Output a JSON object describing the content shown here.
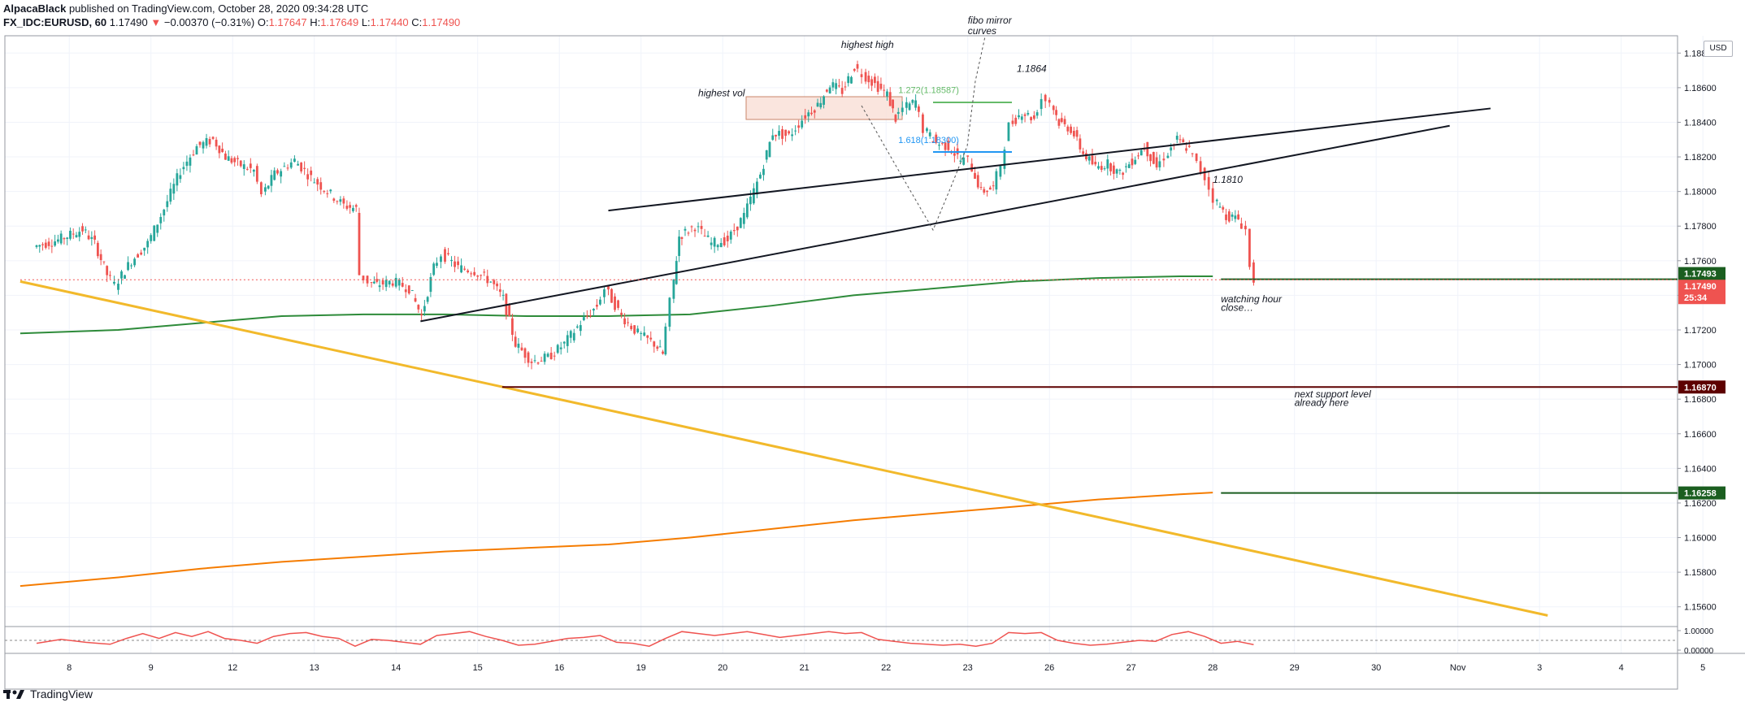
{
  "header": {
    "author": "AlpacaBlack",
    "published": " published on TradingView.com, October 28, 2020 09:34:28 UTC",
    "symbol": "FX_IDC:EURUSD, 60",
    "last": "1.17490",
    "change": "−0.00370 (−0.31%)",
    "o_label": "O:",
    "o_val": "1.17647",
    "h_label": "H:",
    "h_val": "1.17649",
    "l_label": "L:",
    "l_val": "1.17440",
    "c_label": "C:",
    "c_val": "1.17490"
  },
  "currency_button": "USD",
  "footer": {
    "brand": "TradingView"
  },
  "chart_data": {
    "type": "candlestick",
    "symbol": "FX_IDC:EURUSD",
    "interval": "60",
    "ylim": [
      1.155,
      1.189
    ],
    "y_ticks": [
      "1.18800",
      "1.18600",
      "1.18400",
      "1.18200",
      "1.18000",
      "1.17800",
      "1.17600",
      "1.17400",
      "1.17200",
      "1.17000",
      "1.16800",
      "1.16600",
      "1.16400",
      "1.16200",
      "1.16000",
      "1.15800",
      "1.15600"
    ],
    "x_ticks": [
      {
        "label": "8",
        "x": 0.4
      },
      {
        "label": "9",
        "x": 1.4
      },
      {
        "label": "12",
        "x": 2.4
      },
      {
        "label": "13",
        "x": 3.4
      },
      {
        "label": "14",
        "x": 4.4
      },
      {
        "label": "15",
        "x": 5.4
      },
      {
        "label": "16",
        "x": 6.4
      },
      {
        "label": "19",
        "x": 7.4
      },
      {
        "label": "20",
        "x": 8.4
      },
      {
        "label": "21",
        "x": 9.4
      },
      {
        "label": "22",
        "x": 10.4
      },
      {
        "label": "23",
        "x": 11.4
      },
      {
        "label": "26",
        "x": 12.4
      },
      {
        "label": "27",
        "x": 13.4
      },
      {
        "label": "28",
        "x": 14.4
      },
      {
        "label": "29",
        "x": 15.4
      },
      {
        "label": "30",
        "x": 16.4
      },
      {
        "label": "Nov",
        "x": 17.4
      },
      {
        "label": "3",
        "x": 18.4
      },
      {
        "label": "4",
        "x": 19.4
      },
      {
        "label": "5",
        "x": 20.4
      }
    ],
    "price_path": [
      [
        0.0,
        1.1768
      ],
      [
        0.3,
        1.1772
      ],
      [
        0.6,
        1.1778
      ],
      [
        0.75,
        1.177
      ],
      [
        0.9,
        1.1752
      ],
      [
        1.0,
        1.1746
      ],
      [
        1.2,
        1.176
      ],
      [
        1.4,
        1.177
      ],
      [
        1.6,
        1.179
      ],
      [
        1.8,
        1.1812
      ],
      [
        2.0,
        1.1826
      ],
      [
        2.2,
        1.183
      ],
      [
        2.35,
        1.182
      ],
      [
        2.5,
        1.1816
      ],
      [
        2.7,
        1.1812
      ],
      [
        2.8,
        1.1798
      ],
      [
        2.95,
        1.181
      ],
      [
        3.2,
        1.1818
      ],
      [
        3.4,
        1.1808
      ],
      [
        3.6,
        1.18
      ],
      [
        3.8,
        1.1792
      ],
      [
        3.95,
        1.179
      ],
      [
        4.0,
        1.1752
      ],
      [
        4.1,
        1.1748
      ],
      [
        4.2,
        1.1746
      ],
      [
        4.4,
        1.1748
      ],
      [
        4.6,
        1.1744
      ],
      [
        4.75,
        1.1728
      ],
      [
        4.9,
        1.1756
      ],
      [
        5.0,
        1.1764
      ],
      [
        5.2,
        1.1756
      ],
      [
        5.4,
        1.1754
      ],
      [
        5.6,
        1.1748
      ],
      [
        5.75,
        1.1738
      ],
      [
        5.9,
        1.1712
      ],
      [
        6.1,
        1.1702
      ],
      [
        6.3,
        1.1704
      ],
      [
        6.5,
        1.1712
      ],
      [
        6.7,
        1.1724
      ],
      [
        6.9,
        1.1734
      ],
      [
        7.0,
        1.1744
      ],
      [
        7.2,
        1.1728
      ],
      [
        7.4,
        1.1718
      ],
      [
        7.6,
        1.1712
      ],
      [
        7.7,
        1.1706
      ],
      [
        7.8,
        1.1736
      ],
      [
        7.9,
        1.1774
      ],
      [
        8.1,
        1.178
      ],
      [
        8.3,
        1.177
      ],
      [
        8.5,
        1.1772
      ],
      [
        8.7,
        1.1786
      ],
      [
        8.9,
        1.181
      ],
      [
        9.05,
        1.1834
      ],
      [
        9.25,
        1.1832
      ],
      [
        9.45,
        1.1844
      ],
      [
        9.6,
        1.185
      ],
      [
        9.75,
        1.1862
      ],
      [
        9.9,
        1.1858
      ],
      [
        10.05,
        1.1872
      ],
      [
        10.15,
        1.1868
      ],
      [
        10.3,
        1.1862
      ],
      [
        10.45,
        1.1856
      ],
      [
        10.55,
        1.1842
      ],
      [
        10.65,
        1.1848
      ],
      [
        10.8,
        1.1852
      ],
      [
        10.9,
        1.1836
      ],
      [
        11.05,
        1.1828
      ],
      [
        11.2,
        1.1826
      ],
      [
        11.35,
        1.1818
      ],
      [
        11.45,
        1.1818
      ],
      [
        11.6,
        1.18
      ],
      [
        11.75,
        1.1802
      ],
      [
        11.85,
        1.1816
      ],
      [
        11.95,
        1.1838
      ],
      [
        12.1,
        1.1846
      ],
      [
        12.25,
        1.1842
      ],
      [
        12.35,
        1.1854
      ],
      [
        12.45,
        1.1852
      ],
      [
        12.55,
        1.184
      ],
      [
        12.7,
        1.1836
      ],
      [
        12.85,
        1.1822
      ],
      [
        13.0,
        1.1814
      ],
      [
        13.15,
        1.1816
      ],
      [
        13.3,
        1.181
      ],
      [
        13.45,
        1.1818
      ],
      [
        13.6,
        1.1826
      ],
      [
        13.75,
        1.1814
      ],
      [
        13.85,
        1.182
      ],
      [
        14.0,
        1.183
      ],
      [
        14.15,
        1.1824
      ],
      [
        14.25,
        1.1816
      ],
      [
        14.35,
        1.1808
      ],
      [
        14.45,
        1.1796
      ],
      [
        14.6,
        1.1786
      ],
      [
        14.75,
        1.1784
      ],
      [
        14.85,
        1.1778
      ],
      [
        14.9,
        1.1756
      ],
      [
        14.95,
        1.1749
      ]
    ],
    "rsi_path": [
      [
        0.0,
        0.35
      ],
      [
        0.3,
        0.55
      ],
      [
        0.6,
        0.4
      ],
      [
        0.9,
        0.3
      ],
      [
        1.1,
        0.6
      ],
      [
        1.3,
        0.85
      ],
      [
        1.5,
        0.6
      ],
      [
        1.7,
        0.9
      ],
      [
        1.9,
        0.7
      ],
      [
        2.1,
        0.95
      ],
      [
        2.3,
        0.6
      ],
      [
        2.5,
        0.5
      ],
      [
        2.7,
        0.35
      ],
      [
        2.9,
        0.7
      ],
      [
        3.1,
        0.85
      ],
      [
        3.3,
        0.9
      ],
      [
        3.5,
        0.7
      ],
      [
        3.7,
        0.6
      ],
      [
        3.9,
        0.2
      ],
      [
        4.1,
        0.55
      ],
      [
        4.3,
        0.5
      ],
      [
        4.5,
        0.4
      ],
      [
        4.7,
        0.3
      ],
      [
        4.9,
        0.75
      ],
      [
        5.1,
        0.85
      ],
      [
        5.3,
        0.95
      ],
      [
        5.5,
        0.7
      ],
      [
        5.7,
        0.5
      ],
      [
        5.9,
        0.25
      ],
      [
        6.1,
        0.3
      ],
      [
        6.3,
        0.45
      ],
      [
        6.5,
        0.6
      ],
      [
        6.7,
        0.65
      ],
      [
        6.9,
        0.75
      ],
      [
        7.1,
        0.4
      ],
      [
        7.3,
        0.35
      ],
      [
        7.5,
        0.2
      ],
      [
        7.7,
        0.6
      ],
      [
        7.9,
        0.95
      ],
      [
        8.1,
        0.85
      ],
      [
        8.3,
        0.75
      ],
      [
        8.5,
        0.85
      ],
      [
        8.7,
        0.95
      ],
      [
        8.9,
        0.8
      ],
      [
        9.1,
        0.65
      ],
      [
        9.3,
        0.75
      ],
      [
        9.5,
        0.85
      ],
      [
        9.7,
        0.95
      ],
      [
        9.9,
        0.85
      ],
      [
        10.1,
        0.9
      ],
      [
        10.3,
        0.55
      ],
      [
        10.5,
        0.45
      ],
      [
        10.7,
        0.35
      ],
      [
        10.9,
        0.3
      ],
      [
        11.1,
        0.25
      ],
      [
        11.3,
        0.3
      ],
      [
        11.5,
        0.2
      ],
      [
        11.7,
        0.35
      ],
      [
        11.9,
        0.9
      ],
      [
        12.1,
        0.85
      ],
      [
        12.3,
        0.9
      ],
      [
        12.5,
        0.5
      ],
      [
        12.7,
        0.35
      ],
      [
        12.9,
        0.25
      ],
      [
        13.1,
        0.3
      ],
      [
        13.3,
        0.4
      ],
      [
        13.5,
        0.5
      ],
      [
        13.7,
        0.45
      ],
      [
        13.9,
        0.8
      ],
      [
        14.1,
        0.95
      ],
      [
        14.3,
        0.7
      ],
      [
        14.5,
        0.35
      ],
      [
        14.7,
        0.45
      ],
      [
        14.9,
        0.28
      ]
    ],
    "rsi_ticks": [
      "1.00000",
      "0.00000"
    ],
    "series": [
      {
        "kind": "ma",
        "color": "#2e8b3a",
        "points": [
          [
            -0.2,
            1.1718
          ],
          [
            1.0,
            1.172
          ],
          [
            2.0,
            1.1724
          ],
          [
            3.0,
            1.1728
          ],
          [
            4.0,
            1.1729
          ],
          [
            5.0,
            1.1729
          ],
          [
            6.0,
            1.1728
          ],
          [
            7.0,
            1.1728
          ],
          [
            8.0,
            1.1729
          ],
          [
            9.0,
            1.1734
          ],
          [
            10.0,
            1.174
          ],
          [
            11.0,
            1.1744
          ],
          [
            12.0,
            1.1748
          ],
          [
            13.0,
            1.175
          ],
          [
            14.0,
            1.1751
          ],
          [
            14.4,
            1.1751
          ]
        ]
      },
      {
        "kind": "ma",
        "color": "#f57c00",
        "points": [
          [
            -0.2,
            1.1572
          ],
          [
            1.0,
            1.1577
          ],
          [
            2.0,
            1.1582
          ],
          [
            3.0,
            1.1586
          ],
          [
            4.0,
            1.1589
          ],
          [
            5.0,
            1.1592
          ],
          [
            6.0,
            1.1594
          ],
          [
            7.0,
            1.1596
          ],
          [
            8.0,
            1.16
          ],
          [
            9.0,
            1.1605
          ],
          [
            10.0,
            1.161
          ],
          [
            11.0,
            1.1614
          ],
          [
            12.0,
            1.1618
          ],
          [
            13.0,
            1.1622
          ],
          [
            14.0,
            1.1625
          ],
          [
            14.4,
            1.1626
          ]
        ]
      }
    ],
    "drawings": [
      {
        "kind": "trend",
        "color": "#f2b92b",
        "width": 3,
        "from": [
          -0.2,
          1.1748
        ],
        "to": [
          18.5,
          1.1555
        ]
      },
      {
        "kind": "trend",
        "color": "#131722",
        "width": 2,
        "from": [
          7.0,
          1.1789
        ],
        "to": [
          17.8,
          1.1848
        ]
      },
      {
        "kind": "trend",
        "color": "#131722",
        "width": 2,
        "from": [
          4.7,
          1.1725
        ],
        "to": [
          17.3,
          1.1838
        ]
      },
      {
        "kind": "hline",
        "color": "#1b5e20",
        "width": 2,
        "price": 1.17493,
        "from": 14.5,
        "to": 21.2
      },
      {
        "kind": "hline",
        "color": "#5d0000",
        "width": 2,
        "price": 1.1687,
        "from": 5.7,
        "to": 21.2
      },
      {
        "kind": "hline",
        "color": "#1b5e20",
        "width": 2,
        "price": 1.16258,
        "from": 14.5,
        "to": 21.2
      },
      {
        "kind": "hline",
        "color": "#ef5350",
        "width": 1,
        "dash": "2,3",
        "price": 1.1749,
        "from": -0.2,
        "to": 21.2
      }
    ],
    "price_labels": [
      {
        "text": "1.17493",
        "price": 1.17493,
        "bg": "#1b5e20"
      },
      {
        "text": "1.17490",
        "price": 1.1749,
        "bg": "#ef5350"
      },
      {
        "text": "25:34",
        "price": 1.1744,
        "bg": "#ef5350"
      },
      {
        "text": "1.16870",
        "price": 1.1687,
        "bg": "#5d0000"
      },
      {
        "text": "1.16258",
        "price": 1.16258,
        "bg": "#1b5e20"
      }
    ],
    "annotations": [
      {
        "text": "highest  high",
        "x": 9.85,
        "price": 1.1883
      },
      {
        "text": "highest vol",
        "x": 8.1,
        "price": 1.1855
      },
      {
        "text": "fibo mirror",
        "x": 11.4,
        "price": 1.1897
      },
      {
        "text": "curves",
        "x": 11.4,
        "price": 1.1891
      },
      {
        "text": "1.1864",
        "x": 12.0,
        "price": 1.1869
      },
      {
        "text": "1.1810",
        "x": 14.4,
        "price": 1.1805
      },
      {
        "text": "watching hour",
        "x": 14.5,
        "price": 1.1736
      },
      {
        "text": "close…",
        "x": 14.5,
        "price": 1.1731
      },
      {
        "text": "next support level",
        "x": 15.4,
        "price": 1.1681
      },
      {
        "text": "already here",
        "x": 15.4,
        "price": 1.1676
      }
    ],
    "fib_labels": [
      {
        "text": "1.272(1.18587)",
        "color": "#66bb6a",
        "x": 10.55,
        "price": 1.18587
      },
      {
        "text": "1.618(1.18300)",
        "color": "#2196f3",
        "x": 10.55,
        "price": 1.183
      }
    ]
  }
}
